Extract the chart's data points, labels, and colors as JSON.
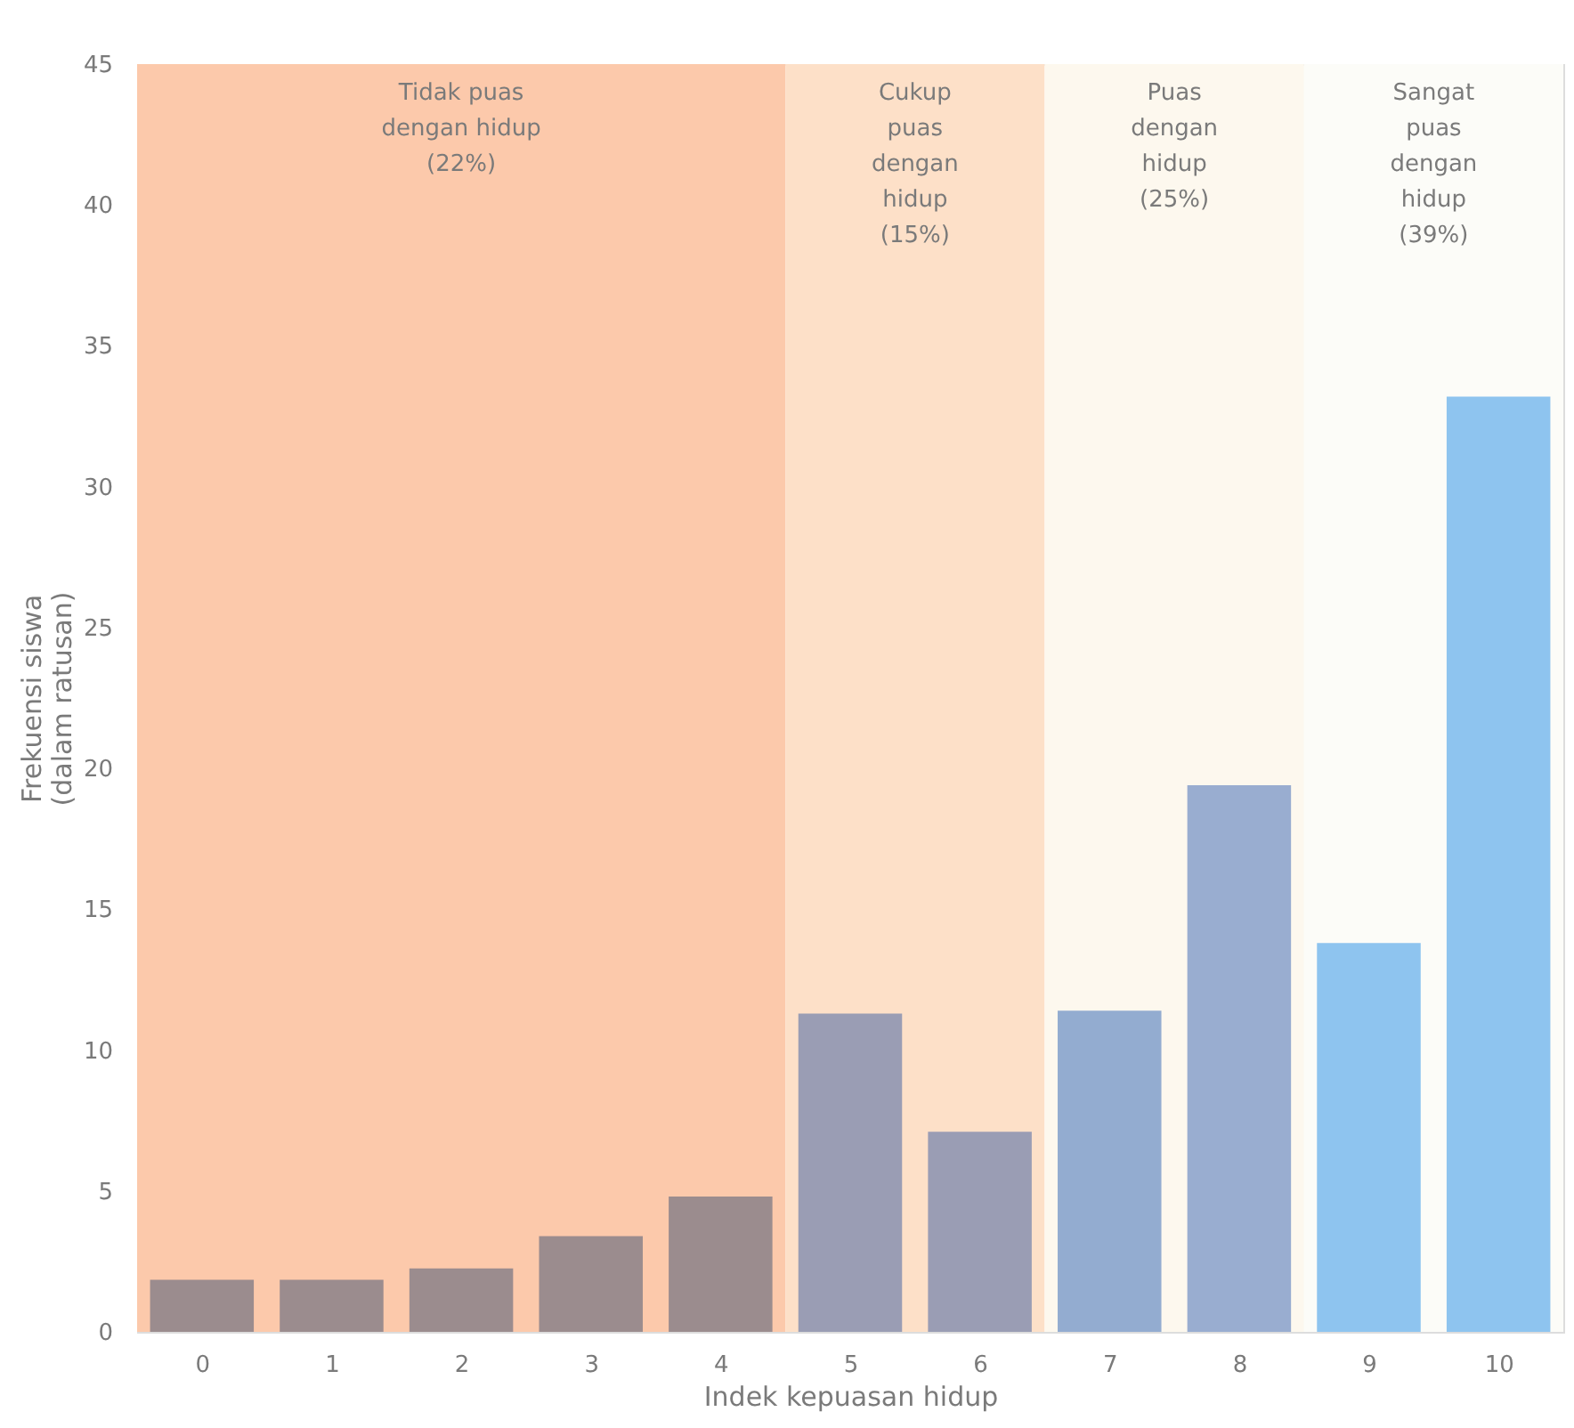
{
  "chart_data": {
    "type": "bar",
    "xlabel": "Indek kepuasan hidup",
    "ylabel": "Frekuensi siswa (dalam ratusan)",
    "categories": [
      "0",
      "1",
      "2",
      "3",
      "4",
      "5",
      "6",
      "7",
      "8",
      "9",
      "10"
    ],
    "values": [
      1.85,
      1.85,
      2.25,
      3.4,
      4.8,
      11.3,
      7.1,
      11.4,
      19.4,
      13.8,
      33.2
    ],
    "colors": [
      "#9b8c8e",
      "#9b8c8e",
      "#9b8c8e",
      "#9b8c8e",
      "#9b8c8e",
      "#9a9db4",
      "#9a9db4",
      "#93acd0",
      "#99add0",
      "#8ec4ef",
      "#8ec4ef"
    ],
    "ylim": [
      0,
      45
    ],
    "yticks": [
      0,
      5,
      10,
      15,
      20,
      25,
      30,
      35,
      40,
      45
    ],
    "bands": [
      {
        "axis": "x",
        "from": "0",
        "to": "4",
        "label": "Tidak puas dengan hidup (22%)",
        "color": "#fcc9ab"
      },
      {
        "axis": "x",
        "from": "5",
        "to": "6",
        "label": "Cukup puas dengan hidup (15%)",
        "color": "#fde0c8"
      },
      {
        "axis": "x",
        "from": "7",
        "to": "8",
        "label": "Puas dengan hidup (25%)",
        "color": "#fdf8ee"
      },
      {
        "axis": "x",
        "from": "9",
        "to": "10",
        "label": "Sangat puas dengan hidup (39%)",
        "color": "#fcfcf8"
      }
    ],
    "grid": false
  }
}
